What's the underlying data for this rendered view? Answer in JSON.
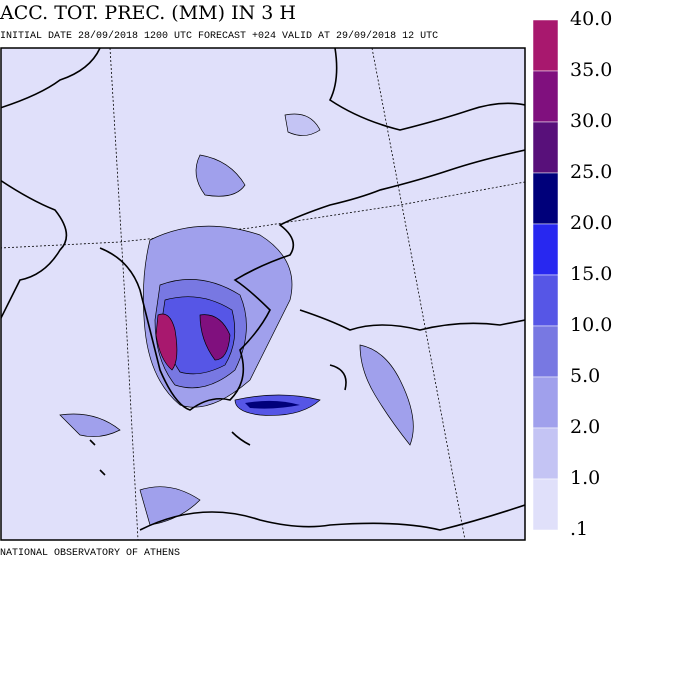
{
  "header": {
    "title": "ACC. TOT. PREC. (MM) IN 3 H",
    "subtitle": "INITIAL DATE 28/09/2018   1200 UTC FORECAST +024 VALID AT  29/09/2018  12 UTC"
  },
  "footer": "NATIONAL OBSERVATORY OF ATHENS",
  "legend": {
    "levels": [
      {
        "value": 40,
        "label": "40.0"
      },
      {
        "value": 35,
        "label": "35.0"
      },
      {
        "value": 30,
        "label": "30.0"
      },
      {
        "value": 25,
        "label": "25.0"
      },
      {
        "value": 20,
        "label": "20.0"
      },
      {
        "value": 15,
        "label": "15.0"
      },
      {
        "value": 10,
        "label": "10.0"
      },
      {
        "value": 5,
        "label": "5.0"
      },
      {
        "value": 2,
        "label": "2.0"
      },
      {
        "value": 1,
        "label": "1.0"
      },
      {
        "value": 0.1,
        "label": ".1"
      }
    ],
    "colors": [
      "#a8186e",
      "#80107e",
      "#58107a",
      "#00007a",
      "#2828f0",
      "#5656e6",
      "#7878e2",
      "#a0a0ec",
      "#c4c4f4",
      "#e0e0fa"
    ]
  }
}
